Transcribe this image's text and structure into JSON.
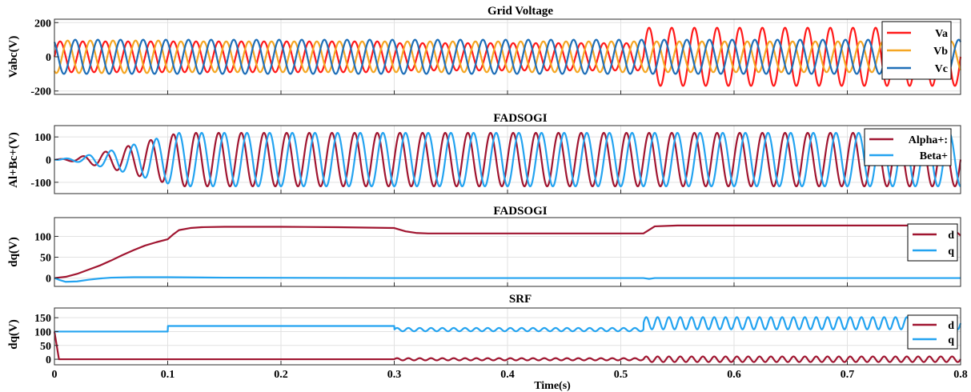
{
  "colors": {
    "va": "#ff1a1a",
    "vb": "#f5a623",
    "vc": "#1f6fb8",
    "alpha": "#a01530",
    "beta": "#23a3f0",
    "d": "#a01530",
    "q": "#23a3f0"
  },
  "xlabel": "Time(s)",
  "chart_data": [
    {
      "type": "line",
      "title": "Grid Voltage",
      "ylabel": "Vabc(V)",
      "xlim": [
        0,
        0.8
      ],
      "ylim": [
        -220,
        220
      ],
      "yticks": [
        -200,
        0,
        200
      ],
      "xticks": [
        0,
        0.1,
        0.2,
        0.3,
        0.4,
        0.5,
        0.6,
        0.7,
        0.8
      ],
      "grid": true,
      "legend": "top-right",
      "frequency_hz": 50,
      "series": [
        {
          "name": "Va",
          "color_key": "va",
          "phase_deg": 0,
          "amplitude_segments": [
            [
              0,
              0.3,
              90
            ],
            [
              0.3,
              0.52,
              80
            ],
            [
              0.52,
              0.8,
              170
            ]
          ]
        },
        {
          "name": "Vb",
          "color_key": "vb",
          "phase_deg": -120,
          "amplitude_segments": [
            [
              0,
              0.1,
              95
            ],
            [
              0.1,
              0.8,
              90
            ]
          ]
        },
        {
          "name": "Vc",
          "color_key": "vc",
          "phase_deg": 120,
          "amplitude_segments": [
            [
              0,
              0.1,
              100
            ],
            [
              0.1,
              0.8,
              100
            ]
          ]
        }
      ]
    },
    {
      "type": "line",
      "title": "FADSOGI",
      "ylabel": "Al+Bc+(V)",
      "xlim": [
        0,
        0.8
      ],
      "ylim": [
        -150,
        150
      ],
      "yticks": [
        -100,
        0,
        100
      ],
      "xticks": [
        0,
        0.1,
        0.2,
        0.3,
        0.4,
        0.5,
        0.6,
        0.7,
        0.8
      ],
      "grid": true,
      "legend": "top-right",
      "frequency_hz": 50,
      "series": [
        {
          "name": "Alpha+:",
          "color_key": "alpha",
          "phase_deg": 0,
          "envelope": [
            [
              0,
              0
            ],
            [
              0.02,
              10
            ],
            [
              0.05,
              40
            ],
            [
              0.08,
              80
            ],
            [
              0.11,
              118
            ],
            [
              0.3,
              118
            ],
            [
              0.8,
              118
            ]
          ]
        },
        {
          "name": "Beta+",
          "color_key": "beta",
          "phase_deg": -90,
          "envelope": [
            [
              0,
              0
            ],
            [
              0.02,
              10
            ],
            [
              0.05,
              40
            ],
            [
              0.08,
              80
            ],
            [
              0.11,
              118
            ],
            [
              0.3,
              118
            ],
            [
              0.8,
              118
            ]
          ]
        }
      ]
    },
    {
      "type": "line",
      "title": "FADSOGI",
      "ylabel": "dq(V)",
      "xlim": [
        0,
        0.8
      ],
      "ylim": [
        -20,
        145
      ],
      "yticks": [
        0,
        50,
        100
      ],
      "xticks": [
        0,
        0.1,
        0.2,
        0.3,
        0.4,
        0.5,
        0.6,
        0.7,
        0.8
      ],
      "grid": true,
      "legend": "top-right",
      "series": [
        {
          "name": "d",
          "color_key": "d",
          "x": [
            0,
            0.01,
            0.02,
            0.03,
            0.04,
            0.05,
            0.06,
            0.07,
            0.08,
            0.09,
            0.1,
            0.105,
            0.11,
            0.12,
            0.13,
            0.15,
            0.2,
            0.25,
            0.3,
            0.31,
            0.32,
            0.33,
            0.4,
            0.5,
            0.52,
            0.53,
            0.55,
            0.6,
            0.7,
            0.79,
            0.8
          ],
          "y": [
            0,
            3,
            10,
            20,
            30,
            42,
            55,
            67,
            78,
            86,
            93,
            105,
            115,
            120,
            122,
            123,
            123,
            122,
            120,
            112,
            108,
            107,
            107,
            107,
            107,
            124,
            126,
            126,
            126,
            126,
            102
          ]
        },
        {
          "name": "q",
          "color_key": "q",
          "x": [
            0,
            0.005,
            0.01,
            0.02,
            0.03,
            0.04,
            0.05,
            0.07,
            0.1,
            0.15,
            0.3,
            0.52,
            0.525,
            0.53,
            0.6,
            0.8
          ],
          "y": [
            0,
            -5,
            -9,
            -8,
            -4,
            -1,
            1,
            2,
            2,
            1,
            0,
            0,
            -2,
            0,
            0,
            0
          ]
        }
      ]
    },
    {
      "type": "line",
      "title": "SRF",
      "ylabel": "dq(V)",
      "xlim": [
        0,
        0.8
      ],
      "ylim": [
        -20,
        185
      ],
      "yticks": [
        0,
        50,
        100,
        150
      ],
      "xticks": [
        0,
        0.1,
        0.2,
        0.3,
        0.4,
        0.5,
        0.6,
        0.7,
        0.8
      ],
      "xticklabels": [
        "0",
        "0.1",
        "0.2",
        "0.3",
        "0.4",
        "0.5",
        "0.6",
        "0.7",
        "0.8"
      ],
      "grid": true,
      "legend": "top-right",
      "oscillation_hz": 100,
      "series": [
        {
          "name": "d",
          "color_key": "d",
          "segments": [
            [
              0,
              0.3,
              0,
              0
            ],
            [
              0.3,
              0.52,
              0,
              4
            ],
            [
              0.52,
              0.8,
              0,
              10
            ]
          ],
          "start_spike": 100
        },
        {
          "name": "q",
          "color_key": "q",
          "segments": [
            [
              0,
              0.1,
              100,
              0
            ],
            [
              0.1,
              0.3,
              120,
              0
            ],
            [
              0.3,
              0.52,
              107,
              6
            ],
            [
              0.52,
              0.8,
              130,
              22
            ]
          ]
        }
      ]
    }
  ]
}
